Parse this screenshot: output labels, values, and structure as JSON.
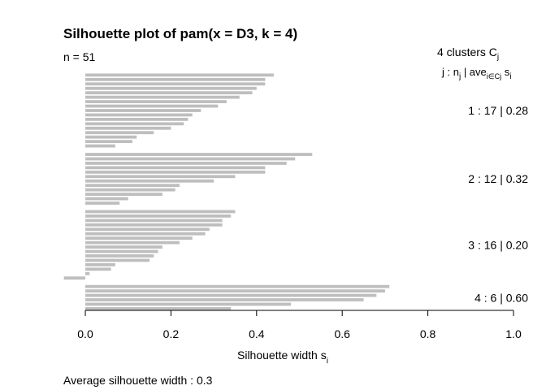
{
  "chart_data": {
    "type": "bar",
    "orientation": "horizontal",
    "title": "Silhouette plot of pam(x = D3, k = 4)",
    "n_label": "n = 51",
    "xlabel": "Silhouette width s",
    "xlabel_sub": "i",
    "xlim": [
      0,
      1
    ],
    "xticks": [
      "0.0",
      "0.2",
      "0.4",
      "0.6",
      "0.8",
      "1.0"
    ],
    "tick_values": [
      0,
      0.2,
      0.4,
      0.6,
      0.8,
      1.0
    ],
    "footer": "Average silhouette width :  0.3",
    "header": {
      "line1": "4  clusters  C",
      "line1_sub": "j",
      "line2_a": "j :  n",
      "line2_a_sub": "j",
      "line2_b": " | ave",
      "line2_b_sub": "i∈Cj",
      "line2_c": "  s",
      "line2_c_sub": "i"
    },
    "bar_color": "#bebebe",
    "clusters": [
      {
        "label": "1 :   17  |  0.28",
        "n": 17,
        "avg": 0.28,
        "values": [
          0.44,
          0.42,
          0.42,
          0.4,
          0.39,
          0.36,
          0.33,
          0.31,
          0.27,
          0.25,
          0.24,
          0.23,
          0.2,
          0.16,
          0.12,
          0.11,
          0.07
        ]
      },
      {
        "label": "2 :   12  |  0.32",
        "n": 12,
        "avg": 0.32,
        "values": [
          0.53,
          0.49,
          0.47,
          0.42,
          0.42,
          0.35,
          0.3,
          0.22,
          0.21,
          0.18,
          0.1,
          0.08
        ]
      },
      {
        "label": "3 :   16  |  0.20",
        "n": 16,
        "avg": 0.2,
        "values": [
          0.35,
          0.34,
          0.32,
          0.32,
          0.29,
          0.28,
          0.25,
          0.22,
          0.18,
          0.17,
          0.16,
          0.15,
          0.07,
          0.06,
          0.01,
          -0.05
        ]
      },
      {
        "label": "4 :    6  |  0.60",
        "n": 6,
        "avg": 0.6,
        "values": [
          0.71,
          0.7,
          0.68,
          0.65,
          0.48,
          0.34
        ]
      }
    ]
  }
}
